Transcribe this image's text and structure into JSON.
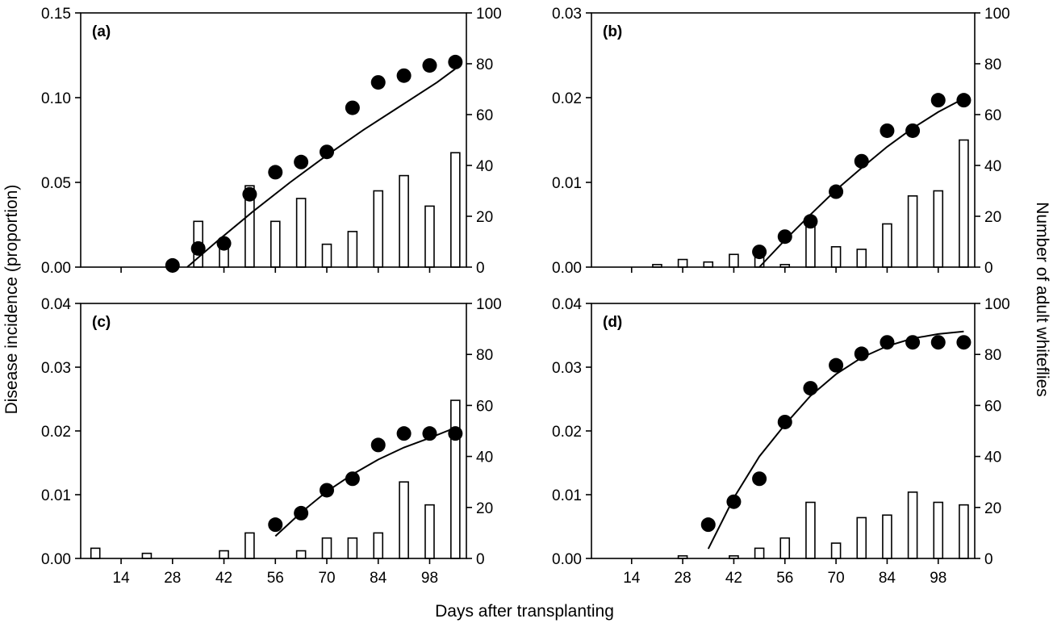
{
  "figure": {
    "xlabel": "Days after transplanting",
    "ylabel_left": "Disease incidence (proportion)",
    "ylabel_right": "Number of adult whiteflies",
    "x_tick_labels": [
      "14",
      "28",
      "42",
      "56",
      "70",
      "84",
      "98"
    ]
  },
  "chart_data": [
    {
      "type": "bar",
      "panel": "(a)",
      "x_ticks": [
        14,
        28,
        42,
        56,
        70,
        84,
        98
      ],
      "y_left_ticks": [
        "0.00",
        "0.05",
        "0.10",
        "0.15"
      ],
      "y_left_range": [
        0,
        0.15
      ],
      "y_right_ticks": [
        "0",
        "20",
        "40",
        "60",
        "80",
        "100"
      ],
      "y_right_range": [
        0,
        100
      ],
      "whiteflies": {
        "x": [
          35,
          42,
          49,
          56,
          63,
          70,
          77,
          84,
          91,
          98,
          105
        ],
        "values": [
          18,
          9,
          32,
          18,
          27,
          9,
          14,
          30,
          36,
          24,
          45
        ]
      },
      "incidence": {
        "x": [
          28,
          35,
          42,
          49,
          56,
          63,
          70,
          77,
          84,
          91,
          98,
          105
        ],
        "values": [
          0.001,
          0.011,
          0.014,
          0.043,
          0.056,
          0.062,
          0.068,
          0.094,
          0.109,
          0.113,
          0.119,
          0.121
        ]
      },
      "fit": {
        "x": [
          32,
          40,
          50,
          60,
          70,
          80,
          90,
          100,
          105
        ],
        "values": [
          0,
          0.015,
          0.033,
          0.05,
          0.066,
          0.081,
          0.095,
          0.109,
          0.117
        ]
      }
    },
    {
      "type": "bar",
      "panel": "(b)",
      "x_ticks": [
        14,
        28,
        42,
        56,
        70,
        84,
        98
      ],
      "y_left_ticks": [
        "0.00",
        "0.01",
        "0.02",
        "0.03"
      ],
      "y_left_range": [
        0,
        0.03
      ],
      "y_right_ticks": [
        "0",
        "20",
        "40",
        "60",
        "80",
        "100"
      ],
      "y_right_range": [
        0,
        100
      ],
      "whiteflies": {
        "x": [
          21,
          28,
          35,
          42,
          49,
          56,
          63,
          70,
          77,
          84,
          91,
          98,
          105
        ],
        "values": [
          1,
          3,
          2,
          5,
          4,
          1,
          18,
          8,
          7,
          17,
          28,
          30,
          50
        ]
      },
      "incidence": {
        "x": [
          49,
          56,
          63,
          70,
          77,
          84,
          91,
          98,
          105
        ],
        "values": [
          0.0018,
          0.0036,
          0.0054,
          0.0089,
          0.0125,
          0.0161,
          0.0161,
          0.0197,
          0.0197
        ]
      },
      "fit": {
        "x": [
          49,
          56,
          63,
          70,
          77,
          84,
          91,
          98,
          105
        ],
        "values": [
          0,
          0.0032,
          0.0062,
          0.0091,
          0.0117,
          0.0142,
          0.0164,
          0.0183,
          0.0199
        ]
      }
    },
    {
      "type": "bar",
      "panel": "(c)",
      "x_ticks": [
        14,
        28,
        42,
        56,
        70,
        84,
        98
      ],
      "y_left_ticks": [
        "0.00",
        "0.01",
        "0.02",
        "0.03",
        "0.04"
      ],
      "y_left_range": [
        0,
        0.04
      ],
      "y_right_ticks": [
        "0",
        "20",
        "40",
        "60",
        "80",
        "100"
      ],
      "y_right_range": [
        0,
        100
      ],
      "whiteflies": {
        "x": [
          7,
          21,
          42,
          49,
          63,
          70,
          77,
          84,
          91,
          98,
          105
        ],
        "values": [
          4,
          2,
          3,
          10,
          3,
          8,
          8,
          10,
          30,
          21,
          62
        ]
      },
      "incidence": {
        "x": [
          56,
          63,
          70,
          77,
          84,
          91,
          98,
          105
        ],
        "values": [
          0.0053,
          0.0071,
          0.0107,
          0.0125,
          0.0178,
          0.0196,
          0.0196,
          0.0196
        ]
      },
      "fit": {
        "x": [
          56,
          63,
          70,
          77,
          84,
          91,
          98,
          105
        ],
        "values": [
          0.0035,
          0.0072,
          0.0105,
          0.0132,
          0.0155,
          0.0174,
          0.0189,
          0.0205
        ]
      }
    },
    {
      "type": "bar",
      "panel": "(d)",
      "x_ticks": [
        14,
        28,
        42,
        56,
        70,
        84,
        98
      ],
      "y_left_ticks": [
        "0.00",
        "0.01",
        "0.02",
        "0.03",
        "0.04"
      ],
      "y_left_range": [
        0,
        0.04
      ],
      "y_right_ticks": [
        "0",
        "20",
        "40",
        "60",
        "80",
        "100"
      ],
      "y_right_range": [
        0,
        100
      ],
      "whiteflies": {
        "x": [
          28,
          42,
          49,
          56,
          63,
          70,
          77,
          84,
          91,
          98,
          105
        ],
        "values": [
          1,
          1,
          4,
          8,
          22,
          6,
          16,
          17,
          26,
          22,
          21
        ]
      },
      "incidence": {
        "x": [
          35,
          42,
          49,
          56,
          63,
          70,
          77,
          84,
          91,
          98,
          105
        ],
        "values": [
          0.0053,
          0.0089,
          0.0125,
          0.0214,
          0.0267,
          0.0303,
          0.0321,
          0.0339,
          0.0339,
          0.0339,
          0.0339
        ]
      },
      "fit": {
        "x": [
          35,
          42,
          49,
          56,
          63,
          70,
          77,
          84,
          91,
          98,
          105
        ],
        "values": [
          0.0015,
          0.0095,
          0.016,
          0.021,
          0.0255,
          0.0289,
          0.0315,
          0.0333,
          0.0345,
          0.0352,
          0.0356
        ]
      }
    }
  ]
}
